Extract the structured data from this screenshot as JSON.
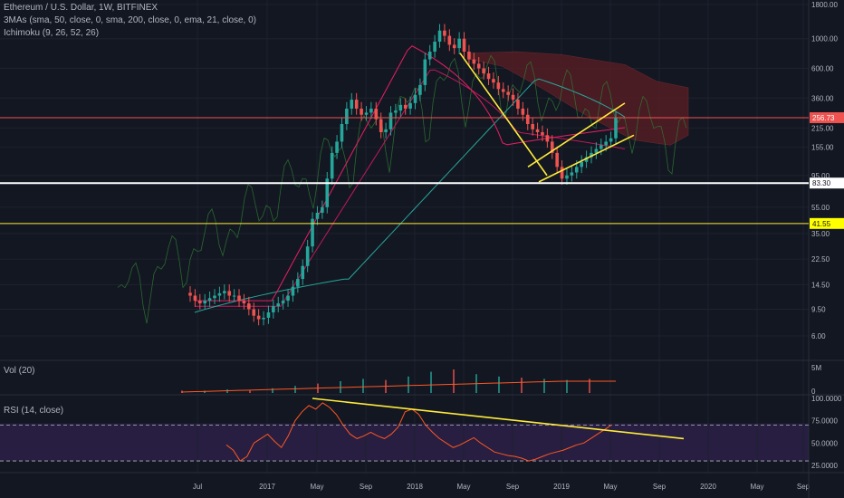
{
  "legend": {
    "symbol": "Ethereum / U.S. Dollar, 1W, BITFINEX",
    "mas": "3MAs (sma, 50, close, 0, sma, 200, close, 0, ema, 21, close, 0)",
    "ichimoku": "Ichimoku (9, 26, 52, 26)",
    "vol": "Vol (20)",
    "rsi": "RSI (14, close)"
  },
  "colors": {
    "background": "#131722",
    "grid": "#1e222d",
    "candle_up": "#26a69a",
    "candle_down": "#ef5350",
    "trendline": "#ffeb3b",
    "support_white": "#ffffff",
    "support_yellow": "#ffeb3b",
    "resistance_red": "#ef5350",
    "ma_sma50": "#c2185b",
    "ma_sma200": "#26a69a",
    "ma_ema21": "#e91e63",
    "ichimoku_span": "#2e7d32",
    "cloud_bear": "#5b1d24",
    "rsi_line": "#ff5722",
    "rsi_band": "#2a1f45",
    "price_tag_red": "#ef5350",
    "price_tag_yellow": "#ffff00"
  },
  "chart_data": {
    "type": "candlestick",
    "scale": "log",
    "price_axis_ticks": [
      "1800.00",
      "1000.00",
      "600.00",
      "360.00",
      "215.00",
      "155.00",
      "95.00",
      "55.00",
      "35.00",
      "22.50",
      "14.50",
      "9.50",
      "6.00"
    ],
    "price_axis_values": [
      1800,
      1000,
      600,
      360,
      215,
      155,
      95,
      55,
      35,
      22.5,
      14.5,
      9.5,
      6
    ],
    "time_axis_labels": [
      "Jul",
      "2017",
      "May",
      "Sep",
      "2018",
      "May",
      "Sep",
      "2019",
      "May",
      "Sep",
      "2020",
      "May",
      "Sep"
    ],
    "price_tags": [
      {
        "label": "256.73",
        "value": 256.73
      },
      {
        "label": "83.30",
        "value": 83.3
      },
      {
        "label": "41.55",
        "value": 41.55
      }
    ],
    "price_series_weekly_close_approx": [
      12,
      11,
      10.5,
      11,
      11.5,
      12,
      12.5,
      13,
      12,
      12,
      11,
      10.5,
      9.5,
      8.5,
      8,
      8.2,
      9,
      10,
      10.5,
      11,
      12,
      14,
      16,
      20,
      28,
      45,
      50,
      55,
      90,
      140,
      170,
      230,
      300,
      350,
      300,
      270,
      280,
      300,
      250,
      200,
      210,
      280,
      290,
      320,
      300,
      330,
      380,
      450,
      700,
      800,
      950,
      1150,
      1050,
      900,
      850,
      1000,
      800,
      700,
      650,
      600,
      550,
      500,
      470,
      420,
      400,
      380,
      350,
      300,
      270,
      230,
      210,
      200,
      190,
      170,
      140,
      110,
      90,
      95,
      100,
      110,
      120,
      130,
      140,
      150,
      160,
      170,
      180,
      256.73
    ],
    "volume_panel": {
      "ticks": [
        "5M",
        "0"
      ],
      "tick_values": [
        5,
        0
      ],
      "unit": "M",
      "relative_volume_bars": [
        0.1,
        0.1,
        0.15,
        0.1,
        0.2,
        0.3,
        0.4,
        0.5,
        0.6,
        0.55,
        0.7,
        0.9,
        1.0,
        0.8,
        0.7,
        0.65,
        0.6,
        0.55,
        0.6
      ]
    },
    "rsi_panel": {
      "ticks": [
        "100.0000",
        "75.0000",
        "50.0000",
        "25.0000"
      ],
      "tick_values": [
        100,
        75,
        50,
        25
      ],
      "band": [
        30,
        70
      ],
      "series_approx": [
        48,
        42,
        30,
        35,
        50,
        55,
        60,
        52,
        45,
        58,
        75,
        85,
        92,
        88,
        95,
        90,
        82,
        70,
        60,
        55,
        58,
        62,
        58,
        55,
        60,
        68,
        85,
        88,
        82,
        70,
        62,
        55,
        50,
        45,
        48,
        52,
        56,
        50,
        45,
        40,
        38,
        36,
        35,
        33,
        30,
        32,
        35,
        38,
        40,
        42,
        45,
        48,
        50,
        55,
        60,
        65,
        70
      ]
    },
    "annotations": [
      "descending trendline from ~May 2018 high to ~Dec 2018 low",
      "ascending channel from Dec 2018 to May 2019",
      "descending RSI trendline from 2017 to 2019"
    ]
  }
}
